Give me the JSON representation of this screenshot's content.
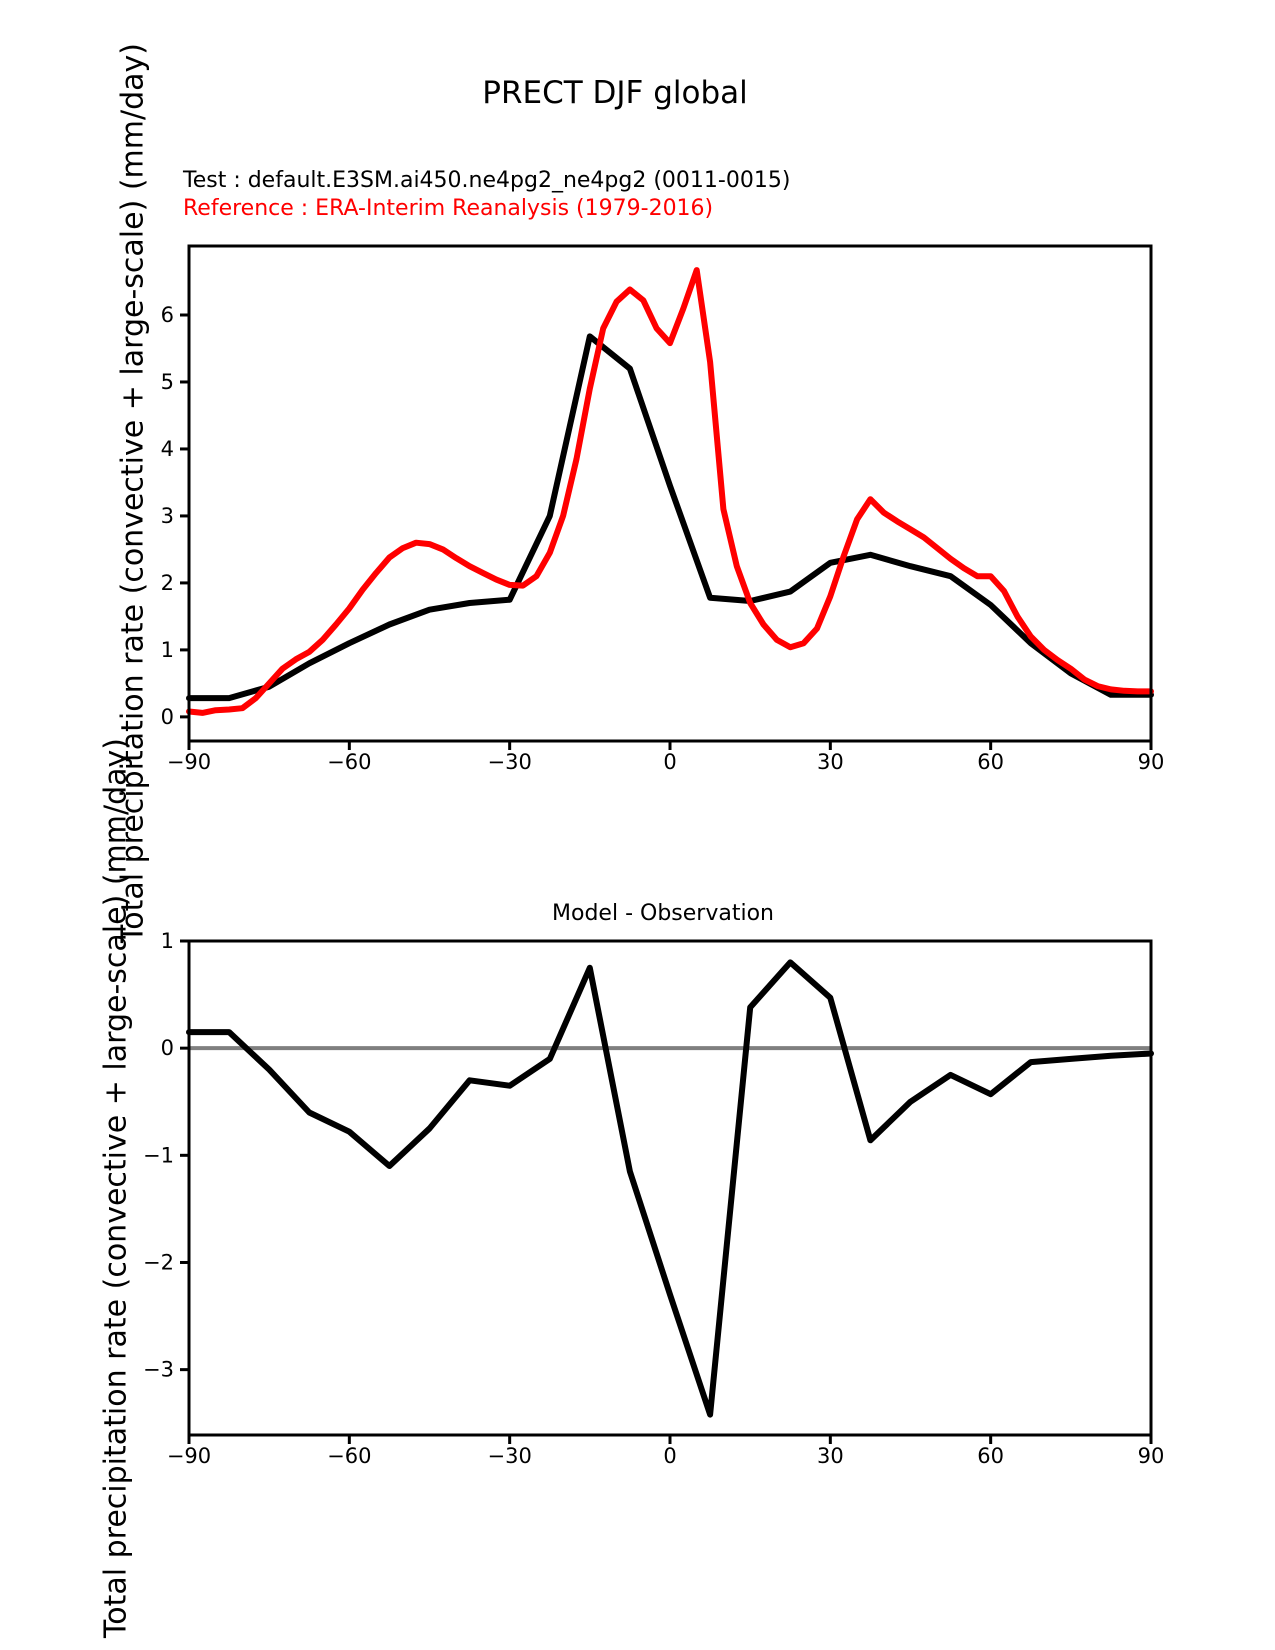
{
  "figure": {
    "title": "PRECT DJF global",
    "test_label": "Test : default.E3SM.ai450.ne4pg2_ne4pg2 (0011-0015)",
    "reference_label": "Reference : ERA-Interim Reanalysis (1979-2016)",
    "colors": {
      "test": "#000000",
      "reference": "#ff0000",
      "zero_line": "#7f7f7f"
    }
  },
  "chart_data": [
    {
      "type": "line",
      "title": "",
      "xlabel": "",
      "ylabel": "Total precipitation rate (convective + large-scale) (mm/day)",
      "xlim": [
        -90,
        90
      ],
      "ylim": [
        -0.36,
        7.03
      ],
      "xticks": [
        -90,
        -60,
        -30,
        0,
        30,
        60,
        90
      ],
      "xtick_labels": [
        "−90",
        "−60",
        "−30",
        "0",
        "30",
        "60",
        "90"
      ],
      "yticks": [
        0,
        1,
        2,
        3,
        4,
        5,
        6
      ],
      "ytick_labels": [
        "0",
        "1",
        "2",
        "3",
        "4",
        "5",
        "6"
      ],
      "grid": false,
      "legend_position": "none (series identified by colored subtitle lines above plot)",
      "zero_line": false,
      "series": [
        {
          "name": "Test model: default.E3SM.ai450.ne4pg2_ne4pg2 (0011-0015)",
          "color": "#000000",
          "x": [
            -90,
            -82.5,
            -75,
            -67.5,
            -60,
            -52.5,
            -45,
            -37.5,
            -30,
            -22.5,
            -15,
            -7.5,
            0,
            7.5,
            15,
            22.5,
            30,
            37.5,
            45,
            52.5,
            60,
            67.5,
            75,
            82.5,
            90
          ],
          "y": [
            0.28,
            0.28,
            0.45,
            0.8,
            1.1,
            1.38,
            1.6,
            1.7,
            1.75,
            3.0,
            5.68,
            5.2,
            3.45,
            1.78,
            1.73,
            1.87,
            2.3,
            2.42,
            2.25,
            2.1,
            1.67,
            1.1,
            0.65,
            0.33,
            0.33
          ]
        },
        {
          "name": "Reference: ERA-Interim Reanalysis (1979-2016)",
          "color": "#ff0000",
          "x": [
            -90,
            -87.5,
            -85,
            -82.5,
            -80,
            -77.5,
            -75,
            -72.5,
            -70,
            -67.5,
            -65,
            -62.5,
            -60,
            -57.5,
            -55,
            -52.5,
            -50,
            -47.5,
            -45,
            -42.5,
            -40,
            -37.5,
            -35,
            -32.5,
            -30,
            -27.5,
            -25,
            -22.5,
            -20,
            -17.5,
            -15,
            -12.5,
            -10,
            -7.5,
            -5,
            -2.5,
            0,
            2.5,
            5,
            7.5,
            10,
            12.5,
            15,
            17.5,
            20,
            22.5,
            25,
            27.5,
            30,
            32.5,
            35,
            37.5,
            40,
            42.5,
            45,
            47.5,
            50,
            52.5,
            55,
            57.5,
            60,
            62.5,
            65,
            67.5,
            70,
            72.5,
            75,
            77.5,
            80,
            82.5,
            85,
            87.5,
            90
          ],
          "y": [
            0.08,
            0.06,
            0.1,
            0.11,
            0.13,
            0.28,
            0.5,
            0.72,
            0.86,
            0.97,
            1.15,
            1.38,
            1.62,
            1.9,
            2.15,
            2.38,
            2.52,
            2.6,
            2.58,
            2.5,
            2.37,
            2.25,
            2.15,
            2.05,
            1.97,
            1.96,
            2.1,
            2.45,
            3.0,
            3.85,
            4.9,
            5.8,
            6.2,
            6.38,
            6.22,
            5.8,
            5.58,
            6.1,
            6.67,
            5.3,
            3.1,
            2.25,
            1.7,
            1.38,
            1.15,
            1.04,
            1.1,
            1.32,
            1.8,
            2.4,
            2.95,
            3.25,
            3.05,
            2.92,
            2.8,
            2.68,
            2.52,
            2.36,
            2.22,
            2.1,
            2.1,
            1.88,
            1.5,
            1.2,
            1.0,
            0.85,
            0.72,
            0.56,
            0.46,
            0.41,
            0.39,
            0.38,
            0.38
          ]
        }
      ]
    },
    {
      "type": "line",
      "title": "Model - Observation",
      "xlabel": "",
      "ylabel": "Total precipitation rate (convective + large-scale) (mm/day)",
      "xlim": [
        -90,
        90
      ],
      "ylim": [
        -3.61,
        1.0
      ],
      "xticks": [
        -90,
        -60,
        -30,
        0,
        30,
        60,
        90
      ],
      "xtick_labels": [
        "−90",
        "−60",
        "−30",
        "0",
        "30",
        "60",
        "90"
      ],
      "yticks": [
        1,
        0,
        -1,
        -2,
        -3
      ],
      "ytick_labels": [
        "1",
        "0",
        "−1",
        "−2",
        "−3"
      ],
      "grid": false,
      "legend_position": "none",
      "zero_line": true,
      "series": [
        {
          "name": "Model - Observation difference",
          "color": "#000000",
          "x": [
            -90,
            -82.5,
            -75,
            -67.5,
            -60,
            -52.5,
            -45,
            -37.5,
            -30,
            -22.5,
            -15,
            -7.5,
            0,
            7.5,
            15,
            22.5,
            30,
            37.5,
            45,
            52.5,
            60,
            67.5,
            75,
            82.5,
            90
          ],
          "y": [
            0.15,
            0.15,
            -0.2,
            -0.6,
            -0.78,
            -1.1,
            -0.75,
            -0.3,
            -0.35,
            -0.1,
            0.75,
            -1.15,
            -2.3,
            -3.42,
            0.38,
            0.8,
            0.47,
            -0.86,
            -0.5,
            -0.25,
            -0.43,
            -0.13,
            -0.1,
            -0.07,
            -0.05
          ]
        }
      ]
    }
  ]
}
